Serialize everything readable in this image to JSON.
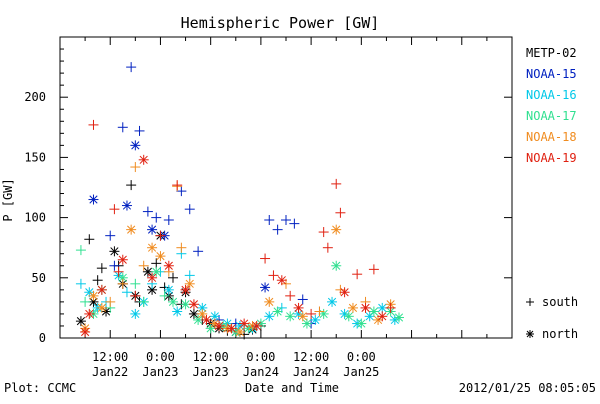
{
  "chart_data": {
    "type": "scatter",
    "title": "Hemispheric Power [GW]",
    "ylabel": "P [GW]",
    "xlabel": "Date and Time",
    "ylim": [
      0,
      250
    ],
    "xlim": [
      0,
      108
    ],
    "y_ticks": [
      0,
      50,
      100,
      150,
      200
    ],
    "x_tick_labels": [
      {
        "x": 12,
        "time": "12:00",
        "date": "Jan22"
      },
      {
        "x": 24,
        "time": "0:00",
        "date": "Jan23"
      },
      {
        "x": 36,
        "time": "12:00",
        "date": "Jan23"
      },
      {
        "x": 48,
        "time": "0:00",
        "date": "Jan24"
      },
      {
        "x": 60,
        "time": "12:00",
        "date": "Jan24"
      },
      {
        "x": 72,
        "time": "0:00",
        "date": "Jan25"
      }
    ],
    "legend_markers": [
      {
        "marker": "+",
        "label": "south"
      },
      {
        "marker": "*",
        "label": "north"
      }
    ],
    "series": [
      {
        "name": "METP-02",
        "color": "#000000",
        "points": [
          [
            7,
            82,
            "+"
          ],
          [
            9,
            48,
            "+"
          ],
          [
            10,
            58,
            "+"
          ],
          [
            11,
            22,
            "*"
          ],
          [
            13,
            72,
            "*"
          ],
          [
            15,
            45,
            "*"
          ],
          [
            17,
            127,
            "+"
          ],
          [
            18,
            35,
            "*"
          ],
          [
            19,
            30,
            "+"
          ],
          [
            21,
            55,
            "*"
          ],
          [
            22,
            40,
            "*"
          ],
          [
            23,
            62,
            "+"
          ],
          [
            24,
            85,
            "*"
          ],
          [
            26,
            35,
            "*"
          ],
          [
            27,
            50,
            "+"
          ],
          [
            29,
            28,
            "+"
          ],
          [
            30,
            38,
            "*"
          ],
          [
            32,
            20,
            "*"
          ],
          [
            34,
            15,
            "+"
          ],
          [
            36,
            12,
            "*"
          ],
          [
            38,
            8,
            "*"
          ],
          [
            40,
            6,
            "+"
          ],
          [
            42,
            5,
            "*"
          ],
          [
            44,
            3,
            "+"
          ],
          [
            46,
            7,
            "*"
          ],
          [
            48,
            10,
            "+"
          ],
          [
            5,
            14,
            "*"
          ],
          [
            8,
            30,
            "*"
          ],
          [
            14,
            60,
            "+"
          ],
          [
            25,
            42,
            "+"
          ]
        ]
      },
      {
        "name": "NOAA-15",
        "color": "#0020c0",
        "points": [
          [
            8,
            115,
            "*"
          ],
          [
            12,
            85,
            "+"
          ],
          [
            13,
            60,
            "+"
          ],
          [
            15,
            175,
            "+"
          ],
          [
            16,
            110,
            "*"
          ],
          [
            17,
            225,
            "+"
          ],
          [
            18,
            160,
            "*"
          ],
          [
            19,
            172,
            "+"
          ],
          [
            21,
            105,
            "+"
          ],
          [
            22,
            90,
            "*"
          ],
          [
            23,
            100,
            "+"
          ],
          [
            25,
            85,
            "*"
          ],
          [
            26,
            98,
            "+"
          ],
          [
            29,
            122,
            "+"
          ],
          [
            31,
            107,
            "+"
          ],
          [
            33,
            72,
            "+"
          ],
          [
            38,
            15,
            "+"
          ],
          [
            42,
            12,
            "+"
          ],
          [
            46,
            8,
            "+"
          ],
          [
            49,
            42,
            "*"
          ],
          [
            50,
            98,
            "+"
          ],
          [
            52,
            90,
            "+"
          ],
          [
            54,
            98,
            "+"
          ],
          [
            56,
            95,
            "+"
          ],
          [
            58,
            32,
            "+"
          ],
          [
            60,
            12,
            "+"
          ],
          [
            62,
            22,
            "+"
          ]
        ]
      },
      {
        "name": "NOAA-16",
        "color": "#00c8e8",
        "points": [
          [
            5,
            45,
            "+"
          ],
          [
            7,
            38,
            "*"
          ],
          [
            9,
            25,
            "*"
          ],
          [
            11,
            30,
            "+"
          ],
          [
            14,
            52,
            "*"
          ],
          [
            16,
            38,
            "+"
          ],
          [
            18,
            20,
            "*"
          ],
          [
            20,
            30,
            "*"
          ],
          [
            22,
            45,
            "+"
          ],
          [
            24,
            55,
            "+"
          ],
          [
            26,
            40,
            "*"
          ],
          [
            28,
            22,
            "*"
          ],
          [
            29,
            70,
            "+"
          ],
          [
            31,
            52,
            "+"
          ],
          [
            34,
            25,
            "*"
          ],
          [
            37,
            18,
            "*"
          ],
          [
            40,
            12,
            "*"
          ],
          [
            43,
            10,
            "*"
          ],
          [
            46,
            8,
            "*"
          ],
          [
            50,
            18,
            "*"
          ],
          [
            53,
            25,
            "+"
          ],
          [
            57,
            20,
            "*"
          ],
          [
            61,
            15,
            "*"
          ],
          [
            65,
            30,
            "*"
          ],
          [
            68,
            20,
            "*"
          ],
          [
            71,
            12,
            "*"
          ],
          [
            74,
            18,
            "*"
          ],
          [
            77,
            25,
            "*"
          ],
          [
            80,
            15,
            "*"
          ]
        ]
      },
      {
        "name": "NOAA-17",
        "color": "#30e090",
        "points": [
          [
            5,
            73,
            "+"
          ],
          [
            6,
            30,
            "+"
          ],
          [
            8,
            20,
            "*"
          ],
          [
            10,
            40,
            "*"
          ],
          [
            12,
            25,
            "+"
          ],
          [
            15,
            50,
            "*"
          ],
          [
            18,
            45,
            "+"
          ],
          [
            20,
            30,
            "+"
          ],
          [
            23,
            55,
            "*"
          ],
          [
            25,
            35,
            "+"
          ],
          [
            27,
            30,
            "*"
          ],
          [
            30,
            28,
            "*"
          ],
          [
            33,
            15,
            "*"
          ],
          [
            36,
            8,
            "*"
          ],
          [
            39,
            10,
            "*"
          ],
          [
            42,
            5,
            "*"
          ],
          [
            45,
            8,
            "*"
          ],
          [
            48,
            12,
            "*"
          ],
          [
            52,
            22,
            "*"
          ],
          [
            55,
            18,
            "*"
          ],
          [
            59,
            12,
            "*"
          ],
          [
            63,
            20,
            "*"
          ],
          [
            66,
            60,
            "*"
          ],
          [
            69,
            18,
            "*"
          ],
          [
            72,
            12,
            "*"
          ],
          [
            75,
            22,
            "*"
          ],
          [
            79,
            22,
            "*"
          ],
          [
            81,
            17,
            "*"
          ]
        ]
      },
      {
        "name": "NOAA-18",
        "color": "#f08c20",
        "points": [
          [
            6,
            8,
            "*"
          ],
          [
            8,
            35,
            "*"
          ],
          [
            10,
            25,
            "*"
          ],
          [
            12,
            30,
            "+"
          ],
          [
            15,
            45,
            "+"
          ],
          [
            17,
            90,
            "*"
          ],
          [
            18,
            142,
            "+"
          ],
          [
            20,
            60,
            "+"
          ],
          [
            22,
            75,
            "*"
          ],
          [
            24,
            68,
            "*"
          ],
          [
            26,
            55,
            "+"
          ],
          [
            28,
            126,
            "+"
          ],
          [
            29,
            75,
            "+"
          ],
          [
            31,
            45,
            "*"
          ],
          [
            34,
            20,
            "*"
          ],
          [
            37,
            12,
            "*"
          ],
          [
            40,
            8,
            "*"
          ],
          [
            43,
            5,
            "*"
          ],
          [
            46,
            10,
            "*"
          ],
          [
            50,
            30,
            "*"
          ],
          [
            54,
            45,
            "+"
          ],
          [
            58,
            18,
            "*"
          ],
          [
            62,
            22,
            "+"
          ],
          [
            66,
            90,
            "*"
          ],
          [
            67,
            40,
            "+"
          ],
          [
            70,
            25,
            "*"
          ],
          [
            73,
            30,
            "+"
          ],
          [
            76,
            15,
            "*"
          ],
          [
            79,
            28,
            "*"
          ]
        ]
      },
      {
        "name": "NOAA-19",
        "color": "#e02010",
        "points": [
          [
            6,
            5,
            "*"
          ],
          [
            7,
            20,
            "*"
          ],
          [
            8,
            177,
            "+"
          ],
          [
            10,
            40,
            "*"
          ],
          [
            13,
            107,
            "+"
          ],
          [
            14,
            55,
            "+"
          ],
          [
            15,
            65,
            "*"
          ],
          [
            18,
            35,
            "+"
          ],
          [
            20,
            148,
            "*"
          ],
          [
            22,
            50,
            "*"
          ],
          [
            24,
            85,
            "+"
          ],
          [
            26,
            60,
            "*"
          ],
          [
            28,
            127,
            "+"
          ],
          [
            30,
            40,
            "*"
          ],
          [
            32,
            28,
            "*"
          ],
          [
            35,
            15,
            "*"
          ],
          [
            38,
            10,
            "*"
          ],
          [
            41,
            8,
            "*"
          ],
          [
            44,
            12,
            "*"
          ],
          [
            47,
            10,
            "*"
          ],
          [
            49,
            66,
            "+"
          ],
          [
            51,
            52,
            "+"
          ],
          [
            53,
            48,
            "*"
          ],
          [
            55,
            35,
            "+"
          ],
          [
            57,
            25,
            "*"
          ],
          [
            60,
            20,
            "+"
          ],
          [
            63,
            88,
            "+"
          ],
          [
            64,
            75,
            "+"
          ],
          [
            66,
            128,
            "+"
          ],
          [
            67,
            104,
            "+"
          ],
          [
            68,
            38,
            "*"
          ],
          [
            71,
            53,
            "+"
          ],
          [
            73,
            25,
            "*"
          ],
          [
            75,
            57,
            "+"
          ],
          [
            77,
            18,
            "*"
          ],
          [
            79,
            25,
            "+"
          ]
        ]
      }
    ]
  },
  "footer": {
    "left": "Plot: CCMC",
    "right": "2012/01/25 08:05:05"
  }
}
